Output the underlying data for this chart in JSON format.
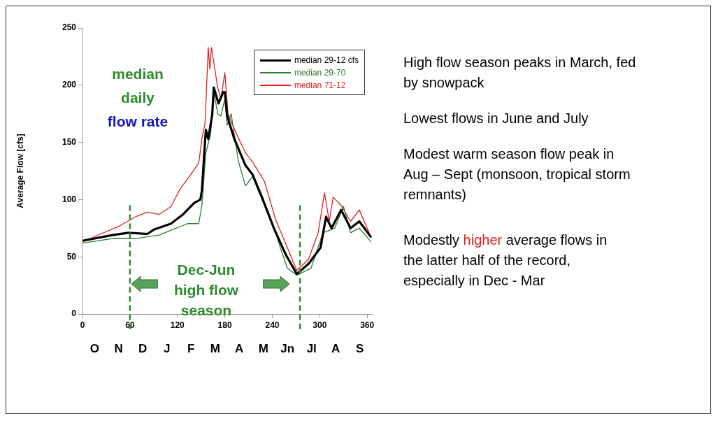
{
  "chart_data": {
    "type": "line",
    "ylabel": "Average Flow [cfs]",
    "xlim": [
      0,
      366
    ],
    "xticks": [
      0,
      60,
      120,
      180,
      240,
      300,
      360
    ],
    "ylim": [
      0,
      250
    ],
    "yticks": [
      0,
      50,
      100,
      150,
      200,
      250
    ],
    "legend": "top right",
    "grid": false,
    "marker": "none",
    "line_style": "solid",
    "series": [
      {
        "name": "median 29-12 cfs",
        "color": "#000000",
        "x": [
          0,
          38,
          58,
          82,
          91,
          112,
          127,
          141,
          149,
          151,
          154,
          156,
          159,
          164,
          166,
          172,
          178,
          180,
          183,
          192,
          206,
          215,
          227,
          242,
          257,
          271,
          286,
          301,
          308,
          315,
          327,
          339,
          350,
          365
        ],
        "values": [
          64,
          69,
          71,
          70,
          74,
          79,
          87,
          97,
          100,
          108,
          141,
          161,
          153,
          174,
          198,
          184,
          194,
          194,
          173,
          153,
          130,
          122,
          102,
          75,
          52,
          35,
          44,
          58,
          85,
          75,
          91,
          75,
          81,
          67
        ]
      },
      {
        "name": "median 29-70",
        "color": "#2e7d32",
        "x": [
          0,
          38,
          67,
          97,
          118,
          133,
          147,
          151,
          156,
          162,
          166,
          171,
          175,
          180,
          183,
          188,
          197,
          206,
          215,
          230,
          244,
          259,
          271,
          289,
          304,
          319,
          330,
          339,
          350,
          365
        ],
        "values": [
          62,
          66,
          66,
          69,
          75,
          79,
          79,
          95,
          141,
          157,
          194,
          175,
          173,
          188,
          165,
          175,
          134,
          112,
          120,
          95,
          71,
          40,
          34,
          40,
          71,
          75,
          94,
          71,
          75,
          63
        ]
      },
      {
        "name": "median 71-12",
        "color": "#e02020",
        "x": [
          0,
          23,
          47,
          67,
          82,
          97,
          112,
          124,
          135,
          147,
          151,
          155,
          159,
          161,
          163,
          171,
          175,
          180,
          184,
          195,
          206,
          216,
          230,
          244,
          259,
          271,
          286,
          298,
          306,
          312,
          317,
          327,
          339,
          350,
          365
        ],
        "values": [
          63,
          70,
          77,
          85,
          89,
          87,
          94,
          110,
          120,
          132,
          153,
          167,
          233,
          214,
          233,
          198,
          188,
          211,
          175,
          157,
          141,
          132,
          116,
          83,
          58,
          38,
          48,
          71,
          106,
          81,
          102,
          95,
          81,
          91,
          67
        ]
      }
    ],
    "ref_lines": [
      {
        "axis": "x",
        "value": 60,
        "color": "#2e8b2e",
        "line_style": "dashed"
      },
      {
        "axis": "x",
        "value": 275,
        "color": "#2e8b2e",
        "line_style": "dashed"
      }
    ],
    "annotations": [
      "median daily",
      "flow rate",
      "Dec-Jun high flow season",
      "High flow season peaks in March, fed by snowpack",
      "Lowest flows in June and July",
      "Modest warm season flow peak in Aug – Sept (monsoon, tropical storm remnants)",
      "Modestly",
      "higher",
      "average flows in the latter half of the record, especially in Dec - Mar",
      "O",
      "N",
      "D",
      "J",
      "F",
      "M",
      "A",
      "M",
      "Jn",
      "Jl",
      "A",
      "S"
    ]
  }
}
